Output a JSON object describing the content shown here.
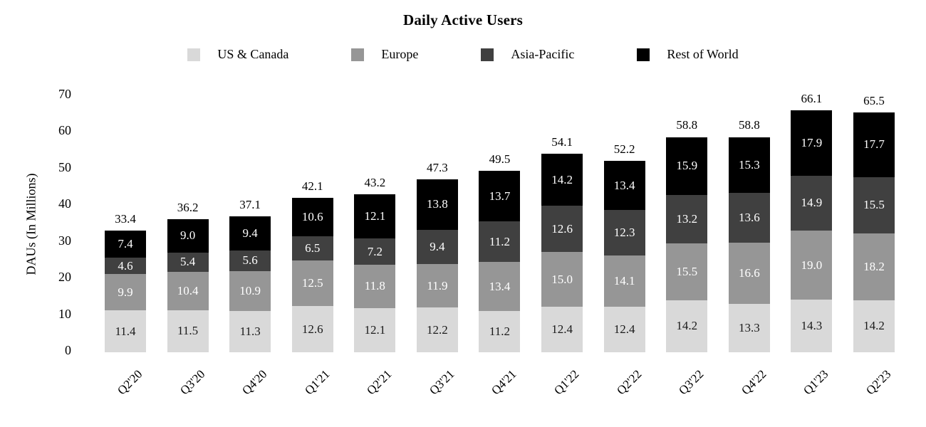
{
  "title": "Daily Active Users",
  "y_axis": {
    "label": "DAUs (In Millions)",
    "ticks": [
      0,
      10,
      20,
      30,
      40,
      50,
      60,
      70
    ]
  },
  "chart_data": {
    "type": "bar",
    "stacked": true,
    "title": "Daily Active Users",
    "xlabel": "",
    "ylabel": "DAUs (In Millions)",
    "ylim": [
      0,
      70
    ],
    "grid": false,
    "legend_position": "top",
    "categories": [
      "Q2'20",
      "Q3'20",
      "Q4'20",
      "Q1'21",
      "Q2'21",
      "Q3'21",
      "Q4'21",
      "Q1'22",
      "Q2'22",
      "Q3'22",
      "Q4'22",
      "Q1'23",
      "Q2'23"
    ],
    "series": [
      {
        "name": "US & Canada",
        "color": "#d9d9d9",
        "label_color": "#1a1a1a",
        "values": [
          11.4,
          11.5,
          11.3,
          12.6,
          12.1,
          12.2,
          11.2,
          12.4,
          12.4,
          14.2,
          13.3,
          14.3,
          14.2
        ]
      },
      {
        "name": "Europe",
        "color": "#969696",
        "label_color": "#ffffff",
        "values": [
          9.9,
          10.4,
          10.9,
          12.5,
          11.8,
          11.9,
          13.4,
          15.0,
          14.1,
          15.5,
          16.6,
          19.0,
          18.2
        ]
      },
      {
        "name": "Asia-Pacific",
        "color": "#404040",
        "label_color": "#ffffff",
        "values": [
          4.6,
          5.4,
          5.6,
          6.5,
          7.2,
          9.4,
          11.2,
          12.6,
          12.3,
          13.2,
          13.6,
          14.9,
          15.5
        ]
      },
      {
        "name": "Rest of World",
        "color": "#000000",
        "label_color": "#ffffff",
        "values": [
          7.4,
          9.0,
          9.4,
          10.6,
          12.1,
          13.8,
          13.7,
          14.2,
          13.4,
          15.9,
          15.3,
          17.9,
          17.7
        ]
      }
    ],
    "totals": [
      33.4,
      36.2,
      37.1,
      42.1,
      43.2,
      47.3,
      49.5,
      54.1,
      52.2,
      58.8,
      58.8,
      66.1,
      65.5
    ]
  }
}
